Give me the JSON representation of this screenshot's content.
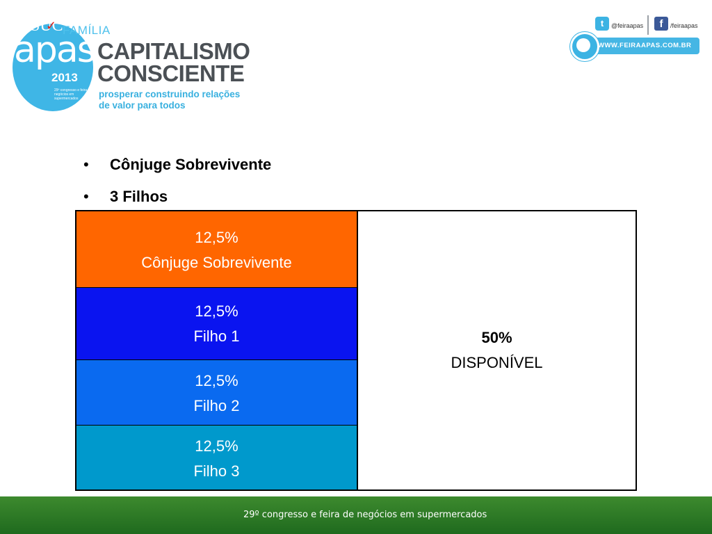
{
  "header": {
    "overlay_title_fragment": "SUC",
    "overlay_check": "✓",
    "overlay_subtitle": "FAMÍLIA",
    "logo": {
      "word": "apas",
      "year": "2013",
      "caption": "29º congresso e feira de negócios em supermercados",
      "color": "#3fb6e6"
    },
    "brand_title": [
      "CAPITALISMO",
      "CONSCIENTE"
    ],
    "brand_tagline": [
      "prosperar construindo relações",
      "de valor para todos"
    ],
    "social": {
      "twitter_icon": "t",
      "twitter_handle": "@feiraapas",
      "facebook_icon": "f",
      "facebook_handle": "/feiraapas",
      "website": "WWW.FEIRAAPAS.COM.BR"
    }
  },
  "bullets": [
    {
      "marker": "•",
      "text": "Cônjuge Sobrevivente"
    },
    {
      "marker": "•",
      "text": "3 Filhos"
    }
  ],
  "table": {
    "left_cells": [
      {
        "percent": "12,5%",
        "label": "Cônjuge Sobrevivente",
        "color": "#ff6600"
      },
      {
        "percent": "12,5%",
        "label": "Filho 1",
        "color": "#0a14f0"
      },
      {
        "percent": "12,5%",
        "label": "Filho 2",
        "color": "#0a6af0"
      },
      {
        "percent": "12,5%",
        "label": "Filho 3",
        "color": "#0099cc"
      }
    ],
    "right_cell": {
      "percent": "50%",
      "label": "DISPONÍVEL"
    }
  },
  "footer": {
    "text": "29º congresso e feira de negócios em supermercados",
    "color": "#2b7a25"
  }
}
